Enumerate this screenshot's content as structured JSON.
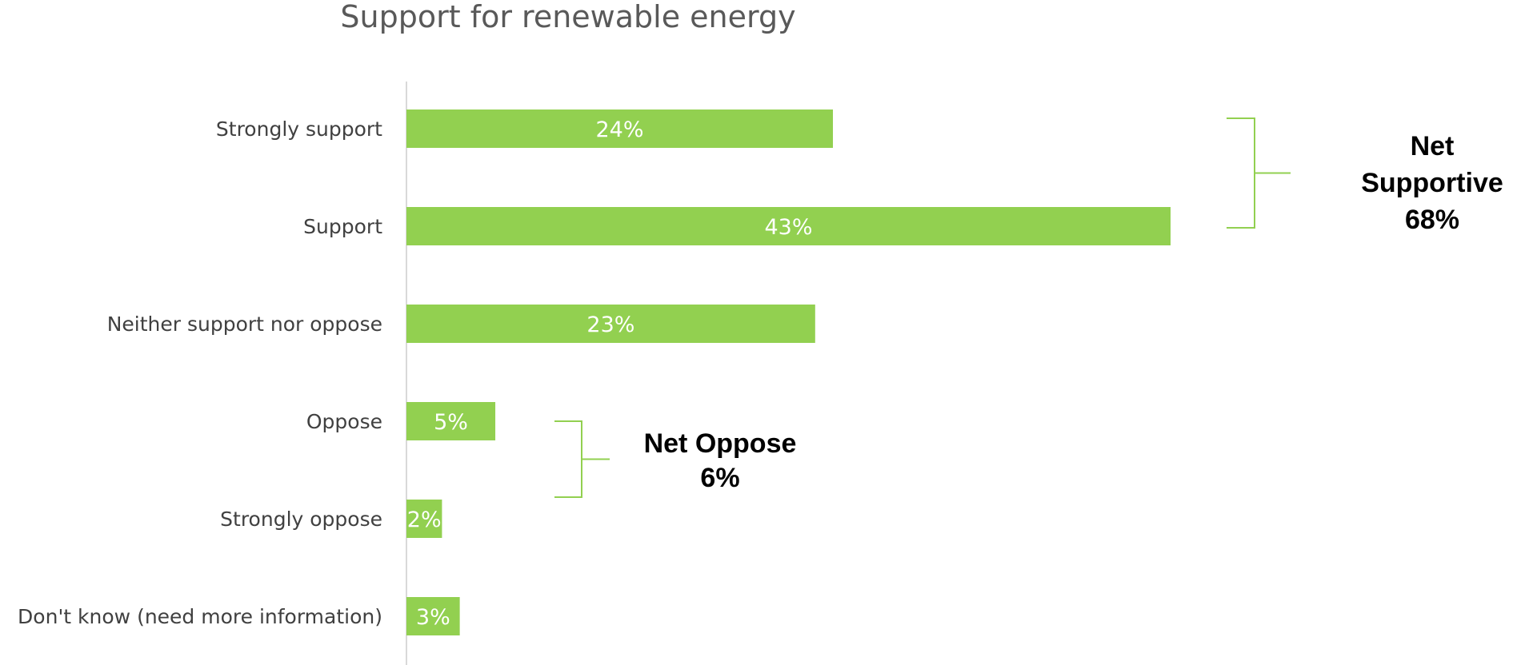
{
  "chart_data": {
    "type": "bar",
    "orientation": "horizontal",
    "title": "Support for renewable energy",
    "categories": [
      "Strongly support",
      "Support",
      "Neither support nor oppose",
      "Oppose",
      "Strongly oppose",
      "Don't know (need more information)"
    ],
    "values": [
      24,
      43,
      23,
      5,
      2,
      3
    ],
    "data_labels": [
      "24%",
      "43%",
      "23%",
      "5%",
      "2%",
      "3%"
    ],
    "xlim": [
      0,
      43
    ],
    "grid": false,
    "legend": "none",
    "annotations": [
      {
        "lines": [
          "Net",
          "Supportive",
          "68%"
        ],
        "spans": [
          0,
          1
        ]
      },
      {
        "lines": [
          "Net Oppose",
          "6%"
        ],
        "spans": [
          3,
          4
        ]
      }
    ]
  },
  "colors": {
    "bar": "#92d050",
    "bracket": "#92d050",
    "axis": "#d9d9d9",
    "title": "#595959",
    "category_label": "#404040"
  }
}
